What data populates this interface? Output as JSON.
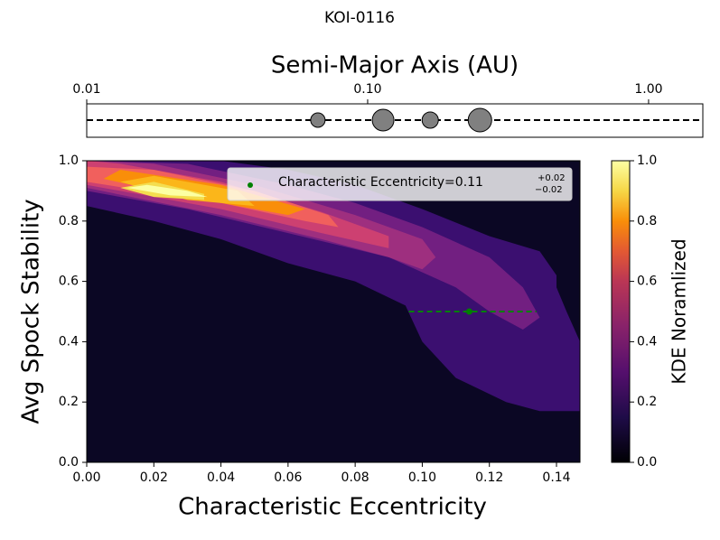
{
  "chart_data": [
    {
      "type": "planets",
      "title": "KOI-0116",
      "xlabel": "Semi-Major Axis (AU)",
      "xscale": "log",
      "xlim": [
        0.01,
        1.56
      ],
      "xticks": [
        0.01,
        {
          "value": 0.1,
          "label": "0.10"
        },
        {
          "value": 1,
          "label": "1.00"
        }
      ],
      "x": [
        0.0665,
        0.1135,
        0.167,
        0.251
      ],
      "sizes": [
        8,
        12,
        9,
        13
      ],
      "color": "#808080"
    },
    {
      "type": "contour",
      "xlabel": "Characteristic Eccentricity",
      "ylabel": "Avg Spock Stability",
      "xlim": [
        0,
        0.147
      ],
      "ylim": [
        0,
        1
      ],
      "xticks": [
        {
          "value": 0,
          "label": "0.00"
        },
        0.02,
        0.04,
        0.06,
        0.08,
        {
          "value": 0.1,
          "label": "0.10"
        },
        0.12,
        0.14
      ],
      "yticks": [
        {
          "value": 0,
          "label": "0.0"
        },
        0.2,
        0.4,
        0.6,
        0.8,
        {
          "value": 1,
          "label": "1.0"
        }
      ],
      "background": "#0b0724",
      "contours": [
        {
          "color": "#3b0f70",
          "points": [
            [
              0,
              1.0
            ],
            [
              0,
              0.85
            ],
            [
              0.02,
              0.8
            ],
            [
              0.04,
              0.74
            ],
            [
              0.06,
              0.66
            ],
            [
              0.08,
              0.6
            ],
            [
              0.095,
              0.52
            ],
            [
              0.1,
              0.4
            ],
            [
              0.11,
              0.28
            ],
            [
              0.125,
              0.2
            ],
            [
              0.135,
              0.17
            ],
            [
              0.147,
              0.17
            ],
            [
              0.147,
              0.4
            ],
            [
              0.143,
              0.5
            ],
            [
              0.14,
              0.58
            ],
            [
              0.14,
              0.62
            ],
            [
              0.135,
              0.7
            ],
            [
              0.12,
              0.75
            ],
            [
              0.1,
              0.84
            ],
            [
              0.08,
              0.92
            ],
            [
              0.06,
              0.97
            ],
            [
              0.04,
              1.0
            ]
          ]
        },
        {
          "color": "#721f81",
          "points": [
            [
              0,
              1.0
            ],
            [
              0,
              0.9
            ],
            [
              0.03,
              0.84
            ],
            [
              0.06,
              0.76
            ],
            [
              0.09,
              0.68
            ],
            [
              0.11,
              0.58
            ],
            [
              0.12,
              0.5
            ],
            [
              0.13,
              0.44
            ],
            [
              0.135,
              0.48
            ],
            [
              0.13,
              0.58
            ],
            [
              0.12,
              0.68
            ],
            [
              0.1,
              0.78
            ],
            [
              0.08,
              0.86
            ],
            [
              0.06,
              0.92
            ],
            [
              0.03,
              0.99
            ]
          ]
        },
        {
          "color": "#9e2f7f",
          "points": [
            [
              0,
              1.0
            ],
            [
              0,
              0.91
            ],
            [
              0.04,
              0.82
            ],
            [
              0.07,
              0.74
            ],
            [
              0.09,
              0.68
            ],
            [
              0.1,
              0.64
            ],
            [
              0.104,
              0.68
            ],
            [
              0.1,
              0.74
            ],
            [
              0.08,
              0.82
            ],
            [
              0.05,
              0.92
            ],
            [
              0.02,
              0.99
            ]
          ]
        },
        {
          "color": "#cd4071",
          "points": [
            [
              0,
              1.0
            ],
            [
              0,
              0.92
            ],
            [
              0.04,
              0.84
            ],
            [
              0.07,
              0.76
            ],
            [
              0.09,
              0.71
            ],
            [
              0.09,
              0.75
            ],
            [
              0.07,
              0.83
            ],
            [
              0.04,
              0.93
            ],
            [
              0.01,
              0.99
            ]
          ]
        },
        {
          "color": "#f1605d",
          "points": [
            [
              0,
              0.98
            ],
            [
              0,
              0.93
            ],
            [
              0.04,
              0.86
            ],
            [
              0.065,
              0.8
            ],
            [
              0.075,
              0.78
            ],
            [
              0.072,
              0.82
            ],
            [
              0.05,
              0.9
            ],
            [
              0.02,
              0.97
            ]
          ]
        },
        {
          "color": "#f98e09",
          "points": [
            [
              0.005,
              0.94
            ],
            [
              0.03,
              0.88
            ],
            [
              0.06,
              0.82
            ],
            [
              0.065,
              0.84
            ],
            [
              0.04,
              0.92
            ],
            [
              0.01,
              0.97
            ]
          ]
        },
        {
          "color": "#fbb61a",
          "points": [
            [
              0.01,
              0.93
            ],
            [
              0.03,
              0.87
            ],
            [
              0.05,
              0.85
            ],
            [
              0.045,
              0.9
            ],
            [
              0.02,
              0.95
            ]
          ]
        },
        {
          "color": "#f4dd4f",
          "points": [
            [
              0.01,
              0.91
            ],
            [
              0.02,
              0.88
            ],
            [
              0.035,
              0.87
            ],
            [
              0.035,
              0.89
            ],
            [
              0.02,
              0.93
            ]
          ]
        },
        {
          "color": "#fcffa4",
          "points": [
            [
              0.012,
              0.91
            ],
            [
              0.025,
              0.885
            ],
            [
              0.036,
              0.88
            ],
            [
              0.03,
              0.9
            ],
            [
              0.018,
              0.92
            ]
          ]
        }
      ],
      "series": [
        {
          "name": "Characteristic Eccentricity=0.11",
          "err_sup": "+0.02",
          "err_sub": "−0.02",
          "color": "#008000",
          "x": [
            0.114
          ],
          "values": [
            0.5
          ],
          "xerr_minus": [
            0.018
          ],
          "xerr_plus": [
            0.02
          ]
        }
      ]
    },
    {
      "type": "colorbar",
      "label": "KDE Noramlized",
      "ylim": [
        0,
        1
      ],
      "yticks": [
        {
          "value": 0,
          "label": "0.0"
        },
        0.2,
        0.4,
        0.6,
        0.8,
        {
          "value": 1,
          "label": "1.0"
        }
      ]
    }
  ]
}
